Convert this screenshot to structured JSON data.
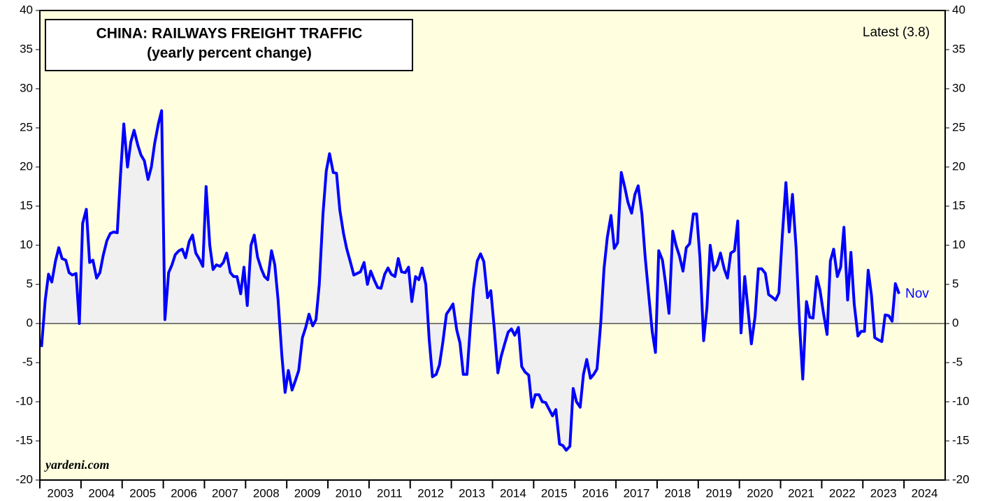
{
  "chart_data": {
    "type": "line",
    "title": "CHINA: RAILWAYS FREIGHT TRAFFIC",
    "subtitle": "(yearly percent change)",
    "annotations": {
      "latest": "Latest (3.8)",
      "last_month": "Nov",
      "source": "yardeni.com"
    },
    "color": "#0000ff",
    "area_color": "#f0f0f0",
    "background": "#ffffe0",
    "xlim": [
      2003,
      2025
    ],
    "xticks": [
      2003,
      2004,
      2005,
      2006,
      2007,
      2008,
      2009,
      2010,
      2011,
      2012,
      2013,
      2014,
      2015,
      2016,
      2017,
      2018,
      2019,
      2020,
      2021,
      2022,
      2023,
      2024
    ],
    "ylim": [
      -20,
      40
    ],
    "yticks": [
      -20,
      -15,
      -10,
      -5,
      0,
      5,
      10,
      15,
      20,
      25,
      30,
      35,
      40
    ],
    "x": [
      2003.04,
      2003.13,
      2003.21,
      2003.29,
      2003.38,
      2003.46,
      2003.54,
      2003.63,
      2003.71,
      2003.79,
      2003.88,
      2003.96,
      2004.04,
      2004.13,
      2004.21,
      2004.29,
      2004.38,
      2004.46,
      2004.54,
      2004.63,
      2004.71,
      2004.79,
      2004.88,
      2004.96,
      2005.04,
      2005.13,
      2005.21,
      2005.29,
      2005.38,
      2005.46,
      2005.54,
      2005.63,
      2005.71,
      2005.79,
      2005.88,
      2005.96,
      2006.04,
      2006.13,
      2006.21,
      2006.29,
      2006.38,
      2006.46,
      2006.54,
      2006.63,
      2006.71,
      2006.79,
      2006.88,
      2006.96,
      2007.04,
      2007.13,
      2007.21,
      2007.29,
      2007.38,
      2007.46,
      2007.54,
      2007.63,
      2007.71,
      2007.79,
      2007.88,
      2007.96,
      2008.04,
      2008.13,
      2008.21,
      2008.29,
      2008.38,
      2008.46,
      2008.54,
      2008.63,
      2008.71,
      2008.79,
      2008.88,
      2008.96,
      2009.04,
      2009.13,
      2009.21,
      2009.29,
      2009.38,
      2009.46,
      2009.54,
      2009.63,
      2009.71,
      2009.79,
      2009.88,
      2009.96,
      2010.04,
      2010.13,
      2010.21,
      2010.29,
      2010.38,
      2010.46,
      2010.54,
      2010.63,
      2010.71,
      2010.79,
      2010.88,
      2010.96,
      2011.04,
      2011.13,
      2011.21,
      2011.29,
      2011.38,
      2011.46,
      2011.54,
      2011.63,
      2011.71,
      2011.79,
      2011.88,
      2011.96,
      2012.04,
      2012.13,
      2012.21,
      2012.29,
      2012.38,
      2012.46,
      2012.54,
      2012.63,
      2012.71,
      2012.79,
      2012.88,
      2012.96,
      2013.04,
      2013.13,
      2013.21,
      2013.29,
      2013.38,
      2013.46,
      2013.54,
      2013.63,
      2013.71,
      2013.79,
      2013.88,
      2013.96,
      2014.04,
      2014.13,
      2014.21,
      2014.29,
      2014.38,
      2014.46,
      2014.54,
      2014.63,
      2014.71,
      2014.79,
      2014.88,
      2014.96,
      2015.04,
      2015.13,
      2015.21,
      2015.29,
      2015.38,
      2015.46,
      2015.54,
      2015.63,
      2015.71,
      2015.79,
      2015.88,
      2015.96,
      2016.04,
      2016.13,
      2016.21,
      2016.29,
      2016.38,
      2016.46,
      2016.54,
      2016.63,
      2016.71,
      2016.79,
      2016.88,
      2016.96,
      2017.04,
      2017.13,
      2017.21,
      2017.29,
      2017.38,
      2017.46,
      2017.54,
      2017.63,
      2017.71,
      2017.79,
      2017.88,
      2017.96,
      2018.04,
      2018.13,
      2018.21,
      2018.29,
      2018.38,
      2018.46,
      2018.54,
      2018.63,
      2018.71,
      2018.79,
      2018.88,
      2018.96,
      2019.04,
      2019.13,
      2019.21,
      2019.29,
      2019.38,
      2019.46,
      2019.54,
      2019.63,
      2019.71,
      2019.79,
      2019.88,
      2019.96,
      2020.04,
      2020.13,
      2020.21,
      2020.29,
      2020.38,
      2020.46,
      2020.54,
      2020.63,
      2020.71,
      2020.79,
      2020.88,
      2020.96,
      2021.04,
      2021.13,
      2021.21,
      2021.29,
      2021.38,
      2021.46,
      2021.54,
      2021.63,
      2021.71,
      2021.79,
      2021.88,
      2021.96,
      2022.04,
      2022.13,
      2022.21,
      2022.29,
      2022.38,
      2022.46,
      2022.54,
      2022.63,
      2022.71,
      2022.79,
      2022.88,
      2022.96,
      2023.04,
      2023.13,
      2023.21,
      2023.29,
      2023.38,
      2023.46,
      2023.54,
      2023.63,
      2023.71,
      2023.79,
      2023.88
    ],
    "values": [
      -3,
      3,
      6.3,
      5.3,
      8,
      9.7,
      8.3,
      8.1,
      6.5,
      6.2,
      6.4,
      0,
      12.8,
      14.6,
      7.8,
      8.1,
      5.8,
      6.5,
      8.7,
      10.6,
      11.5,
      11.7,
      11.6,
      19,
      25.5,
      20,
      23.2,
      24.7,
      22.8,
      21.5,
      20.8,
      18.4,
      20,
      23,
      25.5,
      27.2,
      0.5,
      6.5,
      7.5,
      8.8,
      9.3,
      9.5,
      8.4,
      10.5,
      11.3,
      9,
      8.2,
      7.3,
      17.5,
      10,
      6.9,
      7.5,
      7.3,
      7.8,
      9,
      6.5,
      6,
      6,
      3.8,
      7.2,
      2.3,
      10,
      11.3,
      8.5,
      7,
      6,
      5.6,
      9.3,
      7.5,
      3,
      -4,
      -8.8,
      -6,
      -8.5,
      -7.3,
      -6,
      -1.8,
      -0.5,
      1.2,
      -0.3,
      0.5,
      5,
      14,
      19.5,
      21.7,
      19.3,
      19.2,
      14.5,
      11.5,
      9.5,
      8,
      6.2,
      6.4,
      6.6,
      7.8,
      5,
      6.7,
      5.5,
      4.6,
      4.5,
      6.3,
      7.1,
      6.3,
      6,
      8.3,
      6.6,
      6.5,
      7.2,
      2.8,
      6,
      5.6,
      7.1,
      5,
      -2,
      -6.8,
      -6.5,
      -5.3,
      -2.5,
      1.2,
      1.8,
      2.5,
      -0.8,
      -2.5,
      -6.5,
      -6.5,
      -0.5,
      4.5,
      8,
      8.9,
      7.9,
      3.3,
      4.2,
      -0.5,
      -6.3,
      -4.2,
      -2.7,
      -1.1,
      -0.7,
      -1.5,
      -0.5,
      -5.5,
      -6.2,
      -6.6,
      -10.7,
      -9.1,
      -9.1,
      -10,
      -10.1,
      -11,
      -11.8,
      -11,
      -15.4,
      -15.6,
      -16.2,
      -15.7,
      -8.3,
      -10,
      -10.7,
      -6.5,
      -4.6,
      -7,
      -6.5,
      -5.8,
      0,
      7,
      11,
      13.8,
      9.6,
      10.3,
      19.3,
      17.5,
      15.5,
      14.1,
      16.5,
      17.6,
      14,
      8.5,
      4,
      -1,
      -3.7,
      9.3,
      8.1,
      5,
      1.3,
      11.8,
      10,
      8.7,
      6.7,
      9.7,
      10.2,
      14,
      14,
      8.5,
      -2.2,
      2,
      10,
      6.8,
      7.5,
      9,
      7,
      5.8,
      9,
      9.3,
      13.1,
      -1.2,
      6,
      1.8,
      -2.6,
      0.9,
      7,
      7,
      6.4,
      3.7,
      3.4,
      3,
      3.9,
      11,
      18,
      11.7,
      16.5,
      9.5,
      0,
      -7.1,
      2.8,
      0.8,
      0.7,
      6,
      4.2,
      1.4,
      -1.4,
      8,
      9.5,
      6,
      7.2,
      12.3,
      3,
      9.1,
      2.5,
      -1.6,
      -1,
      -1,
      6.8,
      3.6,
      -1.8,
      -2.1,
      -2.3,
      1.1,
      1,
      0.3,
      5.1,
      3.8
    ]
  }
}
